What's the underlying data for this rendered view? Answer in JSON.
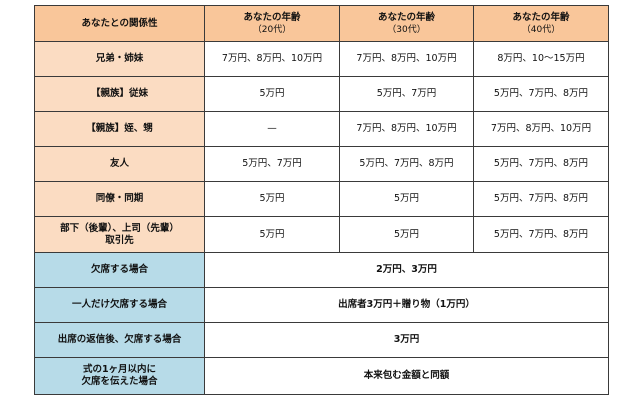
{
  "header": {
    "relation": "あなたとの関係性",
    "age20_line1": "あなたの年齢",
    "age20_line2": "（20代）",
    "age30_line1": "あなたの年齢",
    "age30_line2": "（30代）",
    "age40_line1": "あなたの年齢",
    "age40_line2": "（40代）"
  },
  "rows": [
    {
      "relation": "兄弟・姉妹",
      "age20": "7万円、8万円、10万円",
      "age30": "7万円、8万円、10万円",
      "age40": "8万円、10～15万円"
    },
    {
      "relation": "【親族】従妹",
      "age20": "5万円",
      "age30": "5万円、7万円",
      "age40": "5万円、7万円、8万円"
    },
    {
      "relation": "【親族】姪、甥",
      "age20": "—",
      "age30": "7万円、8万円、10万円",
      "age40": "7万円、8万円、10万円"
    },
    {
      "relation": "友人",
      "age20": "5万円、7万円",
      "age30": "5万円、7万円、8万円",
      "age40": "5万円、7万円、8万円"
    },
    {
      "relation": "同僚・同期",
      "age20": "5万円",
      "age30": "5万円",
      "age40": "5万円、7万円、8万円"
    },
    {
      "relation_line1": "部下（後輩）、上司（先輩）",
      "relation_line2": "取引先",
      "age20": "5万円",
      "age30": "5万円",
      "age40": "5万円、7万円、8万円"
    }
  ],
  "special_rows": [
    {
      "condition": "欠席する場合",
      "amount": "2万円、3万円"
    },
    {
      "condition": "一人だけ欠席する場合",
      "amount": "出席者3万円＋贈り物（1万円）"
    },
    {
      "condition": "出席の返信後、欠席する場合",
      "amount": "3万円"
    },
    {
      "condition_line1": "式の1ヶ月以内に",
      "condition_line2": "欠席を伝えた場合",
      "amount": "本来包む金額と同額"
    }
  ],
  "colors": {
    "header_bg": "#f9c69a",
    "relation_bg": "#fbdcc2",
    "condition_bg": "#b7dbe8",
    "border": "#3a3a3a"
  }
}
